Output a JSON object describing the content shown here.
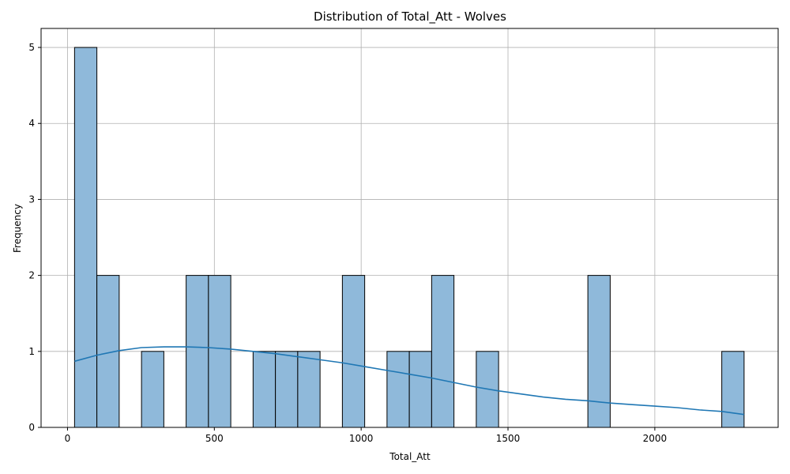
{
  "chart_data": {
    "type": "bar",
    "title": "Distribution of Total_Att - Wolves",
    "xlabel": "Total_Att",
    "ylabel": "Frequency",
    "xlim": [
      -90,
      2420
    ],
    "ylim": [
      0,
      5.25
    ],
    "x_ticks": [
      0,
      500,
      1000,
      1500,
      2000
    ],
    "y_ticks": [
      0,
      1,
      2,
      3,
      4,
      5
    ],
    "grid": true,
    "bar_color": "#8fb9da",
    "bar_edge_color": "#000000",
    "kde_color": "#1f77b4",
    "bins": [
      {
        "x0": 24,
        "x1": 100,
        "count": 5
      },
      {
        "x0": 100,
        "x1": 176,
        "count": 2
      },
      {
        "x0": 252,
        "x1": 328,
        "count": 1
      },
      {
        "x0": 404,
        "x1": 480,
        "count": 2
      },
      {
        "x0": 480,
        "x1": 556,
        "count": 2
      },
      {
        "x0": 632,
        "x1": 708,
        "count": 1
      },
      {
        "x0": 708,
        "x1": 784,
        "count": 1
      },
      {
        "x0": 784,
        "x1": 860,
        "count": 1
      },
      {
        "x0": 936,
        "x1": 1012,
        "count": 2
      },
      {
        "x0": 1088,
        "x1": 1164,
        "count": 1
      },
      {
        "x0": 1164,
        "x1": 1240,
        "count": 1
      },
      {
        "x0": 1240,
        "x1": 1316,
        "count": 2
      },
      {
        "x0": 1392,
        "x1": 1468,
        "count": 1
      },
      {
        "x0": 1772,
        "x1": 1848,
        "count": 2
      },
      {
        "x0": 2228,
        "x1": 2304,
        "count": 1
      }
    ],
    "kde": {
      "x": [
        24,
        100,
        176,
        252,
        328,
        404,
        480,
        556,
        632,
        708,
        784,
        860,
        936,
        1012,
        1088,
        1164,
        1240,
        1316,
        1392,
        1468,
        1544,
        1620,
        1696,
        1772,
        1848,
        1924,
        2000,
        2076,
        2152,
        2228,
        2304
      ],
      "y": [
        0.87,
        0.95,
        1.01,
        1.05,
        1.06,
        1.06,
        1.05,
        1.03,
        1.0,
        0.97,
        0.93,
        0.89,
        0.85,
        0.8,
        0.75,
        0.7,
        0.65,
        0.59,
        0.53,
        0.48,
        0.44,
        0.4,
        0.37,
        0.35,
        0.32,
        0.3,
        0.28,
        0.26,
        0.23,
        0.21,
        0.17
      ]
    }
  }
}
